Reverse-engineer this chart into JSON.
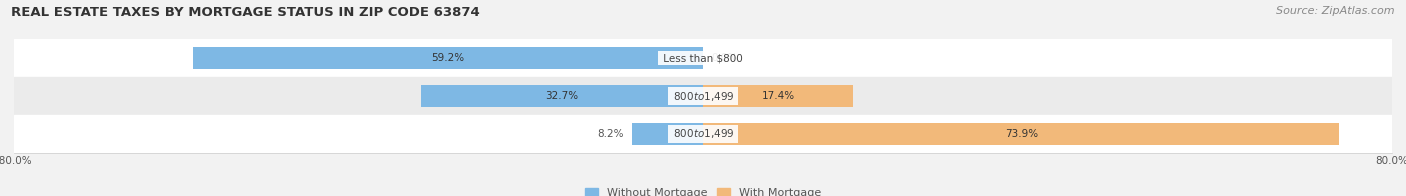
{
  "title": "REAL ESTATE TAXES BY MORTGAGE STATUS IN ZIP CODE 63874",
  "source": "Source: ZipAtlas.com",
  "rows": [
    {
      "label": "Less than $800",
      "without_mortgage": 59.2,
      "with_mortgage": 0.0
    },
    {
      "label": "$800 to $1,499",
      "without_mortgage": 32.7,
      "with_mortgage": 17.4
    },
    {
      "label": "$800 to $1,499",
      "without_mortgage": 8.2,
      "with_mortgage": 73.9
    }
  ],
  "xlim": [
    -80,
    80
  ],
  "xtick_left_label": "-80.0%",
  "xtick_right_label": "80.0%",
  "blue_color": "#7EB8E4",
  "orange_color": "#F2B97A",
  "bar_height": 0.58,
  "bg_color": "#F2F2F2",
  "row_bg_colors": [
    "#FFFFFF",
    "#EBEBEB",
    "#FFFFFF"
  ],
  "title_fontsize": 9.5,
  "source_fontsize": 8,
  "label_fontsize": 7.5,
  "pct_fontsize": 7.5,
  "legend_fontsize": 8
}
